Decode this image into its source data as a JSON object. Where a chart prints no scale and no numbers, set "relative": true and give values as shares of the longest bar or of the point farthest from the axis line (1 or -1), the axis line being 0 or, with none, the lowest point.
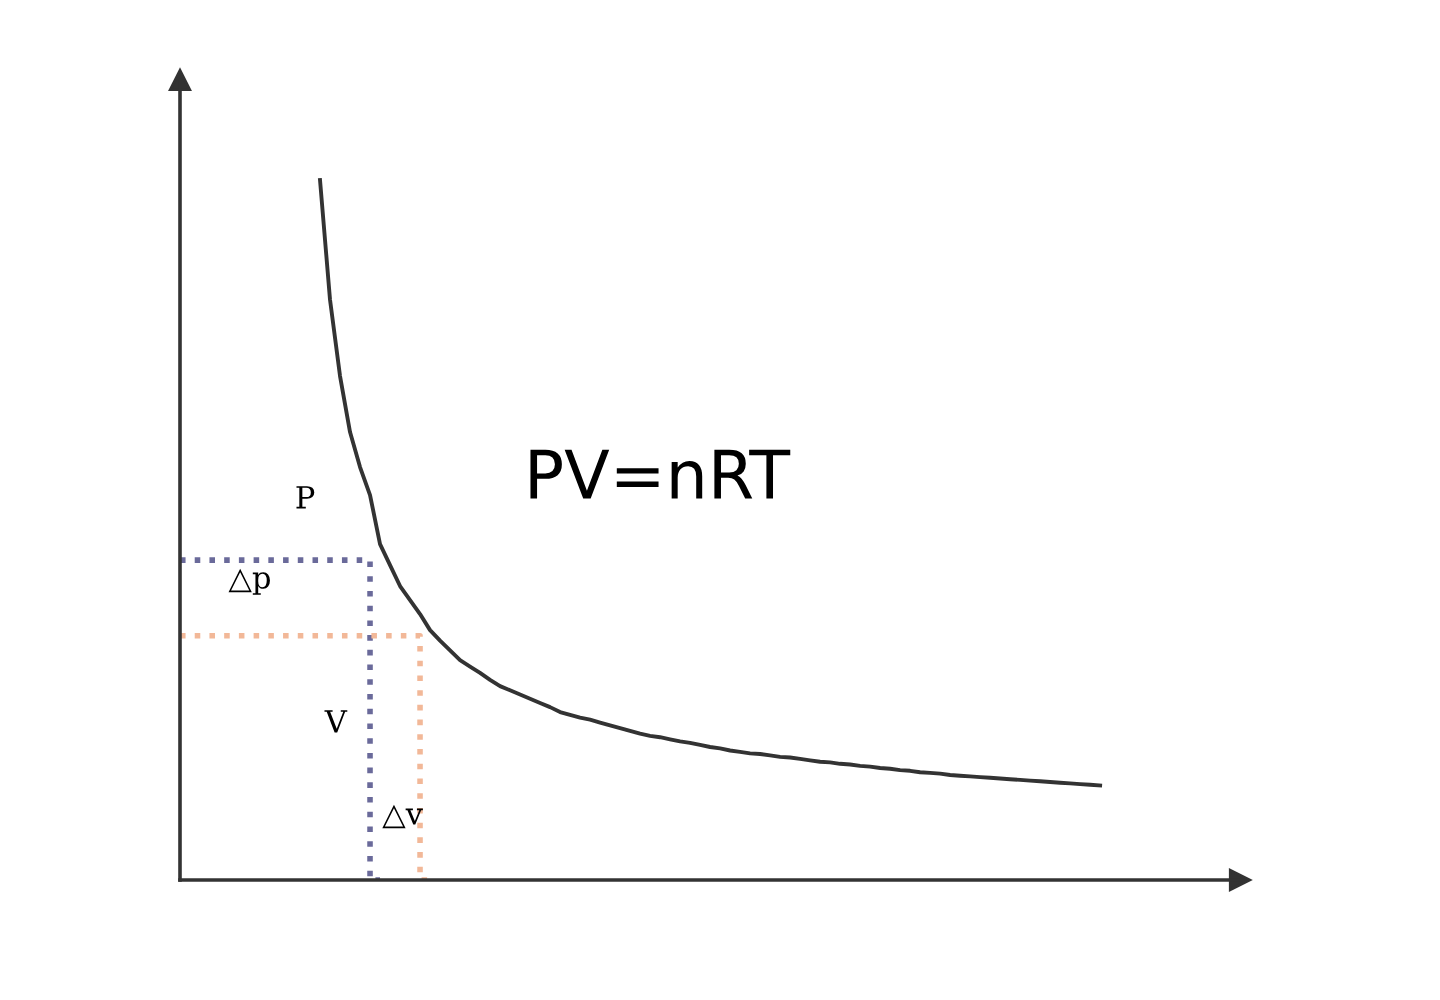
{
  "chart_data": {
    "type": "line",
    "relative": true,
    "line_style": "solid",
    "categories": [
      null,
      null,
      null,
      null,
      null,
      null,
      null,
      null,
      null,
      null,
      null,
      null,
      null,
      null,
      null,
      null,
      null,
      null,
      null,
      null,
      null,
      null,
      null,
      null,
      null,
      null,
      null,
      null,
      null,
      null,
      null,
      null,
      null,
      null,
      null,
      null,
      null,
      null,
      null,
      null,
      null,
      null,
      null,
      null,
      null,
      null,
      null,
      null,
      null,
      null,
      null,
      null,
      null,
      null,
      null,
      null,
      null,
      null,
      null,
      null,
      null,
      null,
      null,
      null,
      null,
      null,
      null,
      null,
      null,
      null,
      null,
      null,
      null,
      null,
      null,
      null,
      null,
      null,
      null,
      null,
      null,
      null,
      null,
      null,
      null,
      null,
      null,
      null,
      null,
      null,
      null,
      null,
      null
    ],
    "series": [
      {
        "color": "#333333",
        "values": [
          null,
          null,
          null,
          null,
          null,
          null,
          null,
          null,
          null,
          null,
          null,
          null,
          null,
          null,
          1.0,
          0.829,
          0.72,
          0.64,
          0.59,
          0.55,
          0.48,
          0.45,
          0.42,
          0.4,
          0.38,
          0.357,
          0.342,
          0.328,
          0.314,
          0.305,
          0.296,
          0.286,
          0.277,
          0.271,
          0.265,
          0.259,
          0.253,
          0.247,
          0.24,
          0.236,
          0.232,
          0.229,
          0.225,
          0.221,
          0.217,
          0.213,
          0.209,
          0.206,
          0.204,
          0.201,
          0.198,
          0.196,
          0.193,
          0.19,
          0.188,
          0.185,
          0.183,
          0.181,
          0.18,
          0.178,
          0.176,
          0.175,
          0.173,
          0.171,
          0.169,
          0.168,
          0.166,
          0.165,
          0.163,
          0.162,
          0.16,
          0.159,
          0.157,
          0.156,
          0.154,
          0.153,
          0.152,
          0.15,
          0.149,
          0.148,
          0.147,
          0.146,
          0.145,
          0.144,
          0.143,
          0.142,
          0.141,
          0.14,
          0.139,
          0.138,
          0.137,
          0.136,
          0.135
        ]
      },
      {
        "type": "step",
        "color": "#6a6a9a",
        "line_style": "dotted",
        "values": [
          0.457,
          0.457,
          0.457,
          0.457,
          0.457,
          0.457,
          0.457,
          0.457,
          0.457,
          0.457,
          0.457,
          0.457,
          0.457,
          0.457,
          0.457,
          0.457,
          0.457,
          0.457,
          0.457,
          0.457,
          0,
          null,
          null,
          null,
          null,
          null,
          null,
          null,
          null,
          null,
          null,
          null,
          null,
          null,
          null,
          null,
          null,
          null,
          null,
          null,
          null,
          null,
          null,
          null,
          null,
          null,
          null,
          null,
          null,
          null,
          null,
          null,
          null,
          null,
          null,
          null,
          null,
          null,
          null,
          null,
          null,
          null,
          null,
          null,
          null,
          null,
          null,
          null,
          null,
          null,
          null,
          null,
          null,
          null,
          null,
          null,
          null,
          null,
          null,
          null,
          null,
          null,
          null,
          null,
          null,
          null,
          null,
          null,
          null,
          null,
          null,
          null,
          null
        ]
      },
      {
        "type": "step",
        "color": "#f2b898",
        "line_style": "dotted",
        "values": [
          0.349,
          0.349,
          0.349,
          0.349,
          0.349,
          0.349,
          0.349,
          0.349,
          0.349,
          0.349,
          0.349,
          0.349,
          0.349,
          0.349,
          0.349,
          0.349,
          0.349,
          0.349,
          0.349,
          0.349,
          0.349,
          0.349,
          0.349,
          0.349,
          0.349,
          0,
          null,
          null,
          null,
          null,
          null,
          null,
          null,
          null,
          null,
          null,
          null,
          null,
          null,
          null,
          null,
          null,
          null,
          null,
          null,
          null,
          null,
          null,
          null,
          null,
          null,
          null,
          null,
          null,
          null,
          null,
          null,
          null,
          null,
          null,
          null,
          null,
          null,
          null,
          null,
          null,
          null,
          null,
          null,
          null,
          null,
          null,
          null,
          null,
          null,
          null,
          null,
          null,
          null,
          null,
          null,
          null,
          null,
          null,
          null,
          null,
          null,
          null,
          null,
          null,
          null,
          null,
          null
        ]
      }
    ],
    "annotations": [
      "P",
      "△p",
      "V",
      "△v",
      "PV=nRT"
    ]
  }
}
